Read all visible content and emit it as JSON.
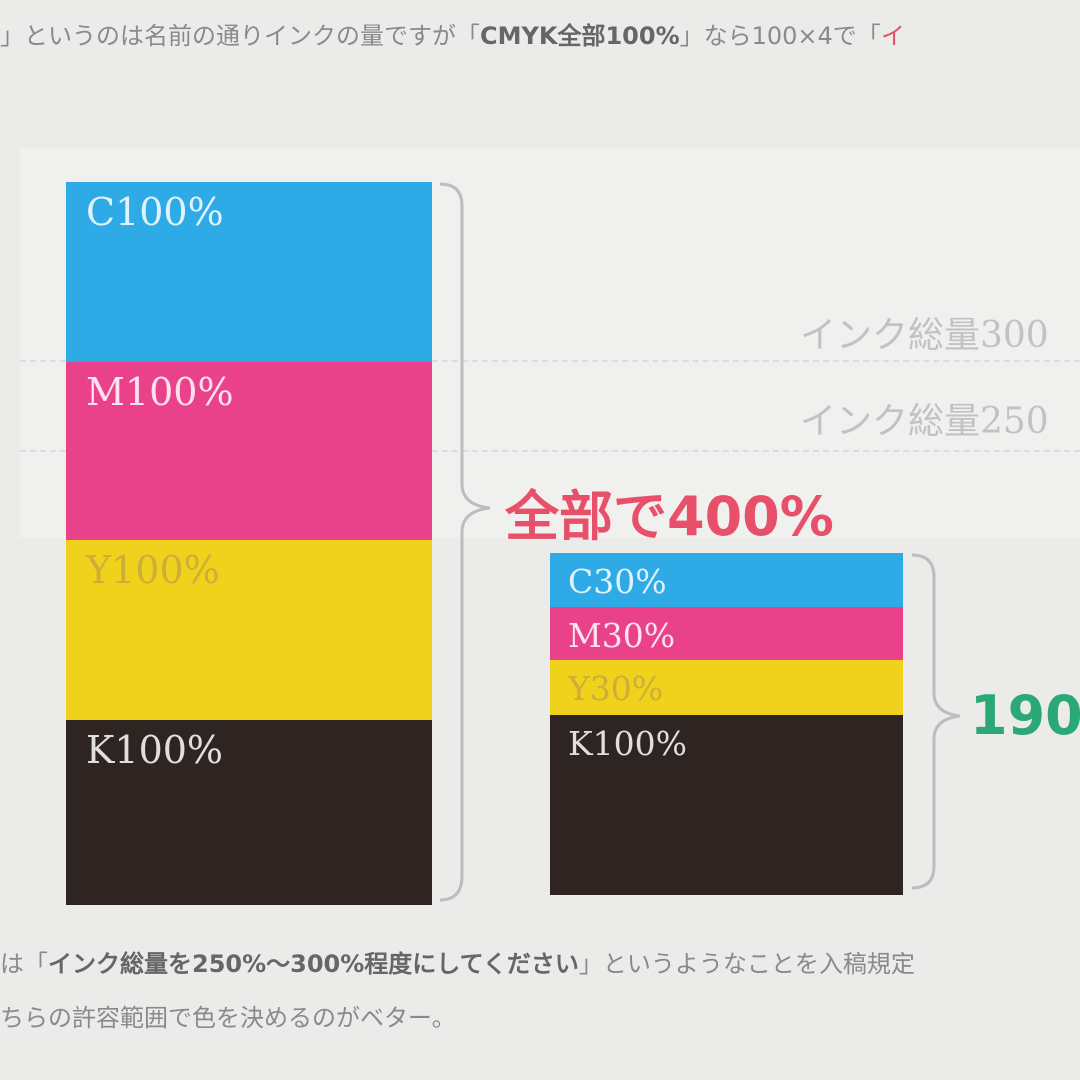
{
  "top_line": {
    "before": "」というのは名前の通りインクの量ですが「",
    "bold": "CMYK全部100%",
    "after": "」なら100×4で「",
    "red": "イ"
  },
  "guides": [
    "インク総量300",
    "インク総量250"
  ],
  "left_stack": {
    "labels": [
      "C100%",
      "M100%",
      "Y100%",
      "K100%"
    ],
    "total": "全部で400%"
  },
  "right_stack": {
    "labels": [
      "C30%",
      "M30%",
      "Y30%",
      "K100%"
    ],
    "total": "190"
  },
  "bottom_text": {
    "line1_before": "は「",
    "line1_bold": "インク総量を250%〜300%程度にしてください",
    "line1_after": "」というようなことを入稿規定",
    "line2": "ちらの許容範囲で色を決めるのがベター。"
  }
}
